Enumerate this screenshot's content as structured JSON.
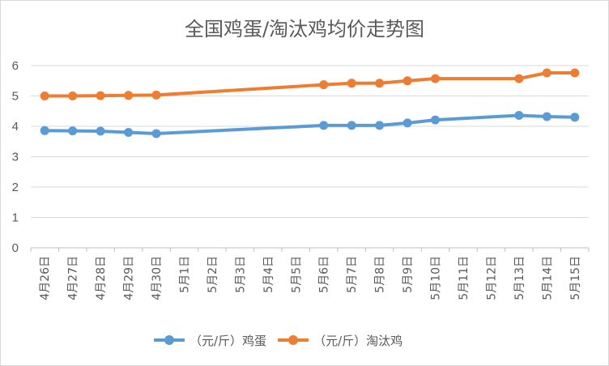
{
  "chart_data": {
    "type": "line",
    "title": "全国鸡蛋/淘汰鸡均价走势图",
    "categories": [
      "4月26日",
      "4月27日",
      "4月28日",
      "4月29日",
      "4月30日",
      "5月1日",
      "5月2日",
      "5月3日",
      "5月4日",
      "5月5日",
      "5月6日",
      "5月7日",
      "5月8日",
      "5月9日",
      "5月10日",
      "5月11日",
      "5月12日",
      "5月13日",
      "5月14日",
      "5月15日"
    ],
    "series": [
      {
        "name": "（元/斤）鸡蛋",
        "color": "#5b9bd5",
        "values": [
          3.86,
          3.85,
          3.84,
          3.8,
          3.76,
          null,
          null,
          null,
          null,
          null,
          4.03,
          4.03,
          4.03,
          4.11,
          4.21,
          null,
          null,
          4.36,
          4.32,
          4.3
        ]
      },
      {
        "name": "（元/斤）淘汰鸡",
        "color": "#ed7d31",
        "values": [
          5.0,
          5.0,
          5.01,
          5.02,
          5.03,
          null,
          null,
          null,
          null,
          null,
          5.37,
          5.42,
          5.42,
          5.5,
          5.57,
          null,
          null,
          5.57,
          5.76,
          5.76
        ]
      }
    ],
    "ylim": [
      0,
      6
    ],
    "yticks": [
      "0",
      "1",
      "2",
      "3",
      "4",
      "5",
      "6"
    ],
    "grid": true,
    "legend_position": "bottom"
  }
}
